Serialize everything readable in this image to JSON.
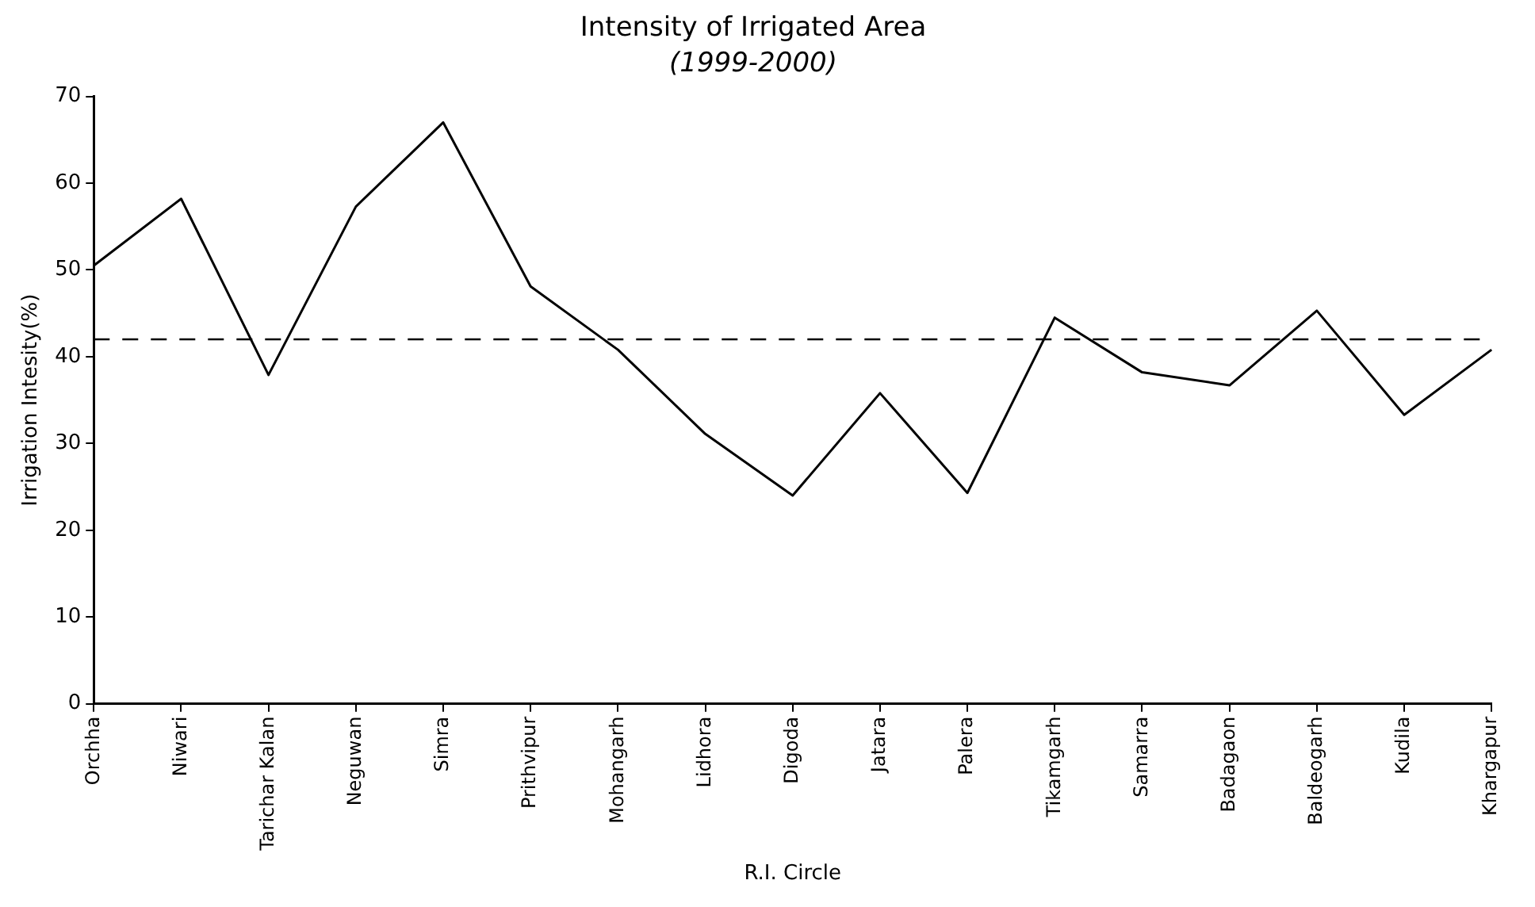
{
  "chart_data": {
    "type": "line",
    "title": "Intensity of Irrigated Area",
    "subtitle": "(1999-2000)",
    "xlabel": "R.I. Circle",
    "ylabel": "Irrigation Intesity(%)",
    "categories": [
      "Orchha",
      "Niwari",
      "Tarichar Kalan",
      "Neguwan",
      "Simra",
      "Prithvipur",
      "Mohangarh",
      "Lidhora",
      "Digoda",
      "Jatara",
      "Palera",
      "Tikamgarh",
      "Samarra",
      "Badagaon",
      "Baldeogarh",
      "Kudila",
      "Khargapur"
    ],
    "series": [
      {
        "color": "#000000",
        "values": [
          50.5,
          58.2,
          37.9,
          57.3,
          67,
          48.1,
          40.8,
          31.1,
          24.0,
          35.8,
          24.3,
          44.5,
          38.2,
          36.7,
          45.3,
          33.3,
          40.8
        ]
      }
    ],
    "ylim": [
      0,
      70
    ],
    "yticks": [
      0,
      10,
      20,
      30,
      40,
      50,
      60,
      70
    ],
    "ref_lines": [
      {
        "axis": "y",
        "value": 42,
        "color": "#000000",
        "line_style": "dashed"
      }
    ],
    "grid": false,
    "legend": false,
    "marker": "none",
    "line_style": "solid"
  }
}
